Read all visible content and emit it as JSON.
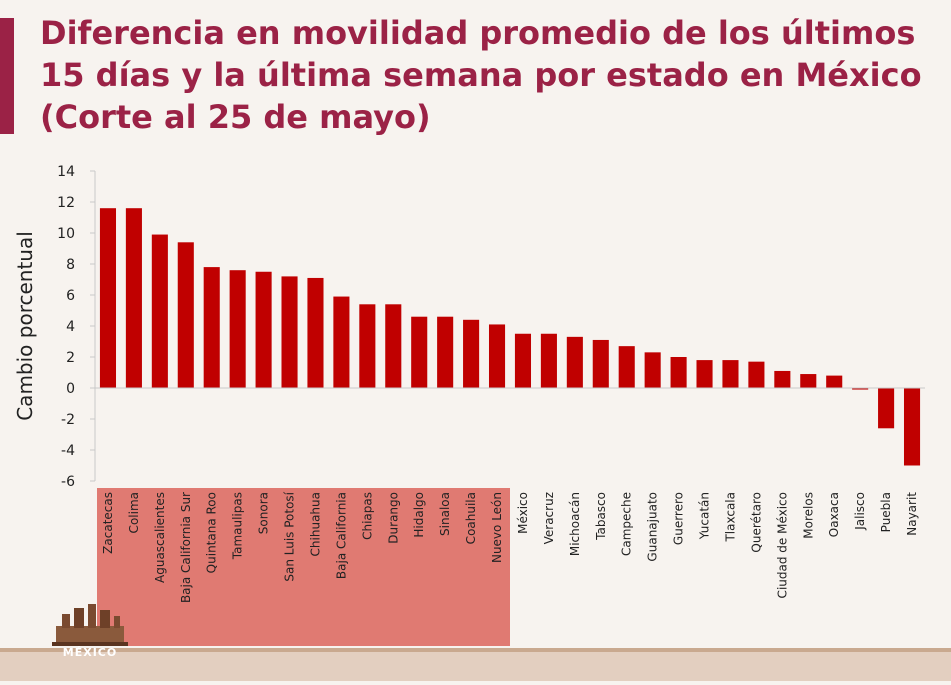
{
  "slide": {
    "title": "Diferencia en movilidad promedio de los últimos 15 días y la última semana por estado en México (Corte al 25 de mayo)",
    "logo_text": "MÉXICO"
  },
  "colors": {
    "accent": "#9b2246",
    "bar": "#c00000",
    "highlight": "#e07a72",
    "axis": "#c8c8c8",
    "text": "#222222"
  },
  "chart_data": {
    "type": "bar",
    "title": "Diferencia en movilidad promedio de los últimos 15 días y la última semana por estado en México (Corte al 25 de mayo)",
    "xlabel": "",
    "ylabel": "Cambio porcentual",
    "ylim": [
      -6,
      14
    ],
    "yticks": [
      -6,
      -4,
      -2,
      0,
      2,
      4,
      6,
      8,
      10,
      12,
      14
    ],
    "grid": false,
    "highlighted_categories_count": 16,
    "categories": [
      "Zacatecas",
      "Colima",
      "Aguascalientes",
      "Baja California Sur",
      "Quintana Roo",
      "Tamaulipas",
      "Sonora",
      "San Luis Potosí",
      "Chihuahua",
      "Baja California",
      "Chiapas",
      "Durango",
      "Hidalgo",
      "Sinaloa",
      "Coahuila",
      "Nuevo León",
      "México",
      "Veracruz",
      "Michoacán",
      "Tabasco",
      "Campeche",
      "Guanajuato",
      "Guerrero",
      "Yucatán",
      "Tlaxcala",
      "Querétaro",
      "Ciudad de México",
      "Morelos",
      "Oaxaca",
      "Jalisco",
      "Puebla",
      "Nayarit"
    ],
    "values": [
      11.6,
      11.6,
      9.9,
      9.4,
      7.8,
      7.6,
      7.5,
      7.2,
      7.1,
      5.9,
      5.4,
      5.4,
      4.6,
      4.6,
      4.4,
      4.1,
      3.5,
      3.5,
      3.3,
      3.1,
      2.7,
      2.3,
      2.0,
      1.8,
      1.8,
      1.7,
      1.1,
      0.9,
      0.8,
      -0.1,
      -2.6,
      -5.0
    ]
  }
}
